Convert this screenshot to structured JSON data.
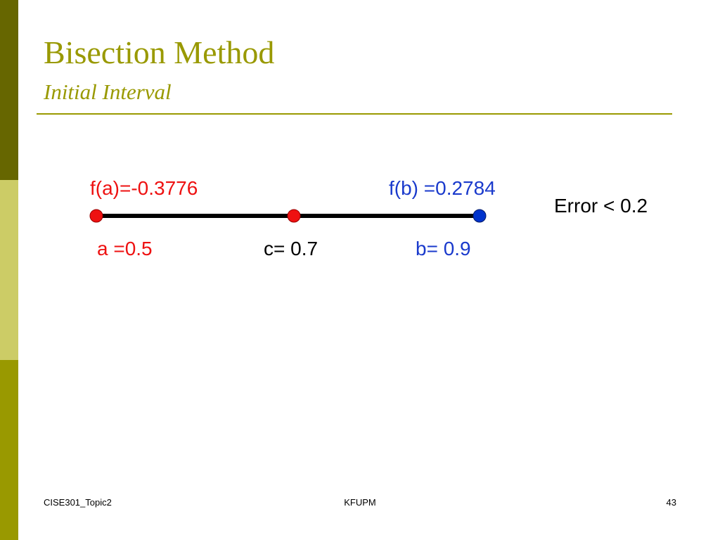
{
  "header": {
    "title": "Bisection Method",
    "subtitle": "Initial Interval"
  },
  "diagram": {
    "fa": "f(a)=-0.3776",
    "fb": "f(b) =0.2784",
    "a": "a =0.5",
    "c": "c= 0.7",
    "b": "b= 0.9",
    "error": "Error < 0.2"
  },
  "footer": {
    "left": "CISE301_Topic2",
    "center": "KFUPM",
    "page": "43"
  }
}
